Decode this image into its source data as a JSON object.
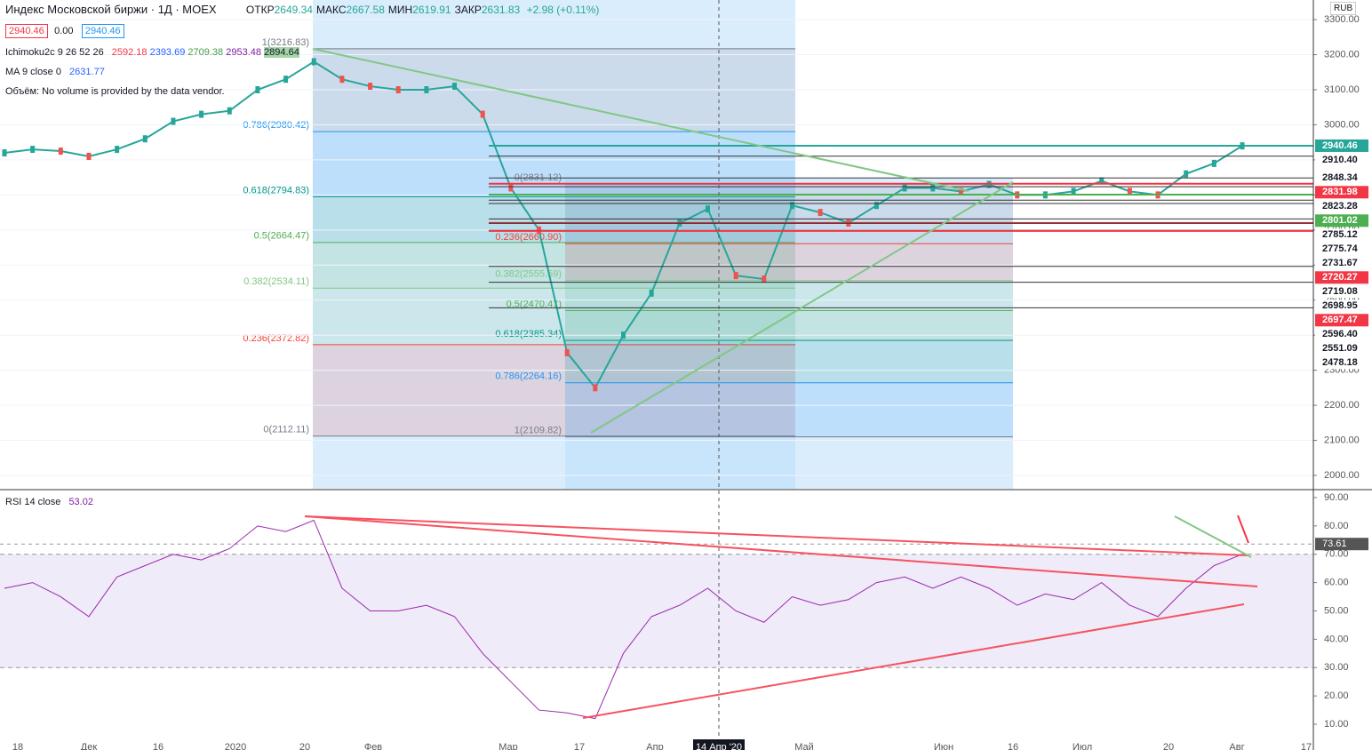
{
  "header": {
    "title": "Индекс Московской биржи · 1Д · MOEX",
    "ohlc": [
      {
        "label": "ОТКР",
        "value": "2649.34"
      },
      {
        "label": "МАКС",
        "value": "2667.58"
      },
      {
        "label": "МИН",
        "value": "2619.91"
      },
      {
        "label": "ЗАКР",
        "value": "2631.83"
      }
    ],
    "change": "+2.98 (+0.11%)",
    "price_boxes": [
      "2940.46",
      "0.00",
      "2940.46"
    ]
  },
  "indicators": {
    "ichimoku": {
      "label": "Ichimoku2c 9 26 52 26",
      "values": [
        "2592.18",
        "2393.69",
        "2709.38",
        "2953.48",
        "2894.64"
      ]
    },
    "ma": {
      "label": "MA 9 close 0",
      "value": "2631.77"
    },
    "volume": "Объём: No volume is provided by the data vendor."
  },
  "price_axis": {
    "currency": "RUB",
    "ylim": [
      1962,
      3356
    ],
    "ticks": [
      {
        "value": 3300,
        "label": "3300.00"
      },
      {
        "value": 3200,
        "label": "3200.00"
      },
      {
        "value": 3100,
        "label": "3100.00"
      },
      {
        "value": 3000,
        "label": "3000.00"
      },
      {
        "value": 2900,
        "label": "2900.00"
      },
      {
        "value": 2800,
        "label": "2800.00"
      },
      {
        "value": 2700,
        "label": "2700.00"
      },
      {
        "value": 2600,
        "label": "2600.00"
      },
      {
        "value": 2500,
        "label": "2500.00"
      },
      {
        "value": 2400,
        "label": "2400.00"
      },
      {
        "value": 2300,
        "label": "2300.00"
      },
      {
        "value": 2200,
        "label": "2200.00"
      },
      {
        "value": 2100,
        "label": "2100.00"
      },
      {
        "value": 2000,
        "label": "2000.00"
      }
    ]
  },
  "price_labels": [
    {
      "value": 2940.46,
      "label": "2940.46",
      "color": "#26a69a"
    },
    {
      "value": 2910.4,
      "label": "2910.40",
      "color": "#ffffff"
    },
    {
      "value": 2848.34,
      "label": "2848.34",
      "color": "#ffffff"
    },
    {
      "value": 2831.98,
      "label": "2831.98",
      "color": "#f23645"
    },
    {
      "value": 2823.28,
      "label": "2823.28",
      "color": "#ffffff"
    },
    {
      "value": 2801.02,
      "label": "2801.02",
      "color": "#4caf50"
    },
    {
      "value": 2785.12,
      "label": "2785.12",
      "color": "#ffffff"
    },
    {
      "value": 2775.74,
      "label": "2775.74",
      "color": "#ffffff"
    },
    {
      "value": 2731.67,
      "label": "2731.67",
      "color": "#ffffff"
    },
    {
      "value": 2720.27,
      "label": "2720.27",
      "color": "#f23645"
    },
    {
      "value": 2719.08,
      "label": "2719.08",
      "color": "#ffffff"
    },
    {
      "value": 2698.95,
      "label": "2698.95",
      "color": "#ffffff"
    },
    {
      "value": 2697.47,
      "label": "2697.47",
      "color": "#f23645"
    },
    {
      "value": 2596.4,
      "label": "2596.40",
      "color": "#ffffff"
    },
    {
      "value": 2551.09,
      "label": "2551.09",
      "color": "#ffffff"
    },
    {
      "value": 2478.18,
      "label": "2478.18",
      "color": "#ffffff"
    }
  ],
  "fib_a": [
    {
      "value": 3216.83,
      "label": "1(3216.83)",
      "color": "#787b86"
    },
    {
      "value": 2980.42,
      "label": "0.786(2980.42)",
      "color": "#2196f3"
    },
    {
      "value": 2794.83,
      "label": "0.618(2794.83)",
      "color": "#009688"
    },
    {
      "value": 2664.47,
      "label": "0.5(2664.47)",
      "color": "#4caf50"
    },
    {
      "value": 2534.11,
      "label": "0.382(2534.11)",
      "color": "#81c784"
    },
    {
      "value": 2372.82,
      "label": "0.236(2372.82)",
      "color": "#f44336"
    },
    {
      "value": 2112.11,
      "label": "0(2112.11)",
      "color": "#787b86"
    }
  ],
  "fib_b": [
    {
      "value": 2831.12,
      "label": "0(2831.12)",
      "color": "#787b86"
    },
    {
      "value": 2660.9,
      "label": "0.236(2660.90)",
      "color": "#f44336"
    },
    {
      "value": 2555.59,
      "label": "0.382(2555.59)",
      "color": "#81c784"
    },
    {
      "value": 2470.47,
      "label": "0.5(2470.47)",
      "color": "#4caf50"
    },
    {
      "value": 2385.34,
      "label": "0.618(2385.34)",
      "color": "#009688"
    },
    {
      "value": 2264.16,
      "label": "0.786(2264.16)",
      "color": "#2196f3"
    },
    {
      "value": 2109.82,
      "label": "1(2109.82)",
      "color": "#787b86"
    }
  ],
  "close": [
    2920,
    2930,
    2925,
    2910,
    2930,
    2960,
    3010,
    3030,
    3040,
    3100,
    3130,
    3180,
    3130,
    3110,
    3100,
    3100,
    3110,
    3030,
    2820,
    2700,
    2350,
    2250,
    2400,
    2520,
    2720,
    2760,
    2570,
    2560,
    2770,
    2750,
    2720,
    2770,
    2820,
    2820,
    2810,
    2830,
    2800,
    2800,
    2810,
    2840,
    2810,
    2800,
    2860,
    2890,
    2940
  ],
  "rsi": {
    "label": "RSI 14 close",
    "value": "53.02",
    "ylim": [
      5.3,
      92.5
    ],
    "ticks": [
      {
        "value": 90,
        "label": "90.00"
      },
      {
        "value": 80,
        "label": "80.00"
      },
      {
        "value": 70,
        "label": "70.00"
      },
      {
        "value": 60,
        "label": "60.00"
      },
      {
        "value": 50,
        "label": "50.00"
      },
      {
        "value": 40,
        "label": "40.00"
      },
      {
        "value": 30,
        "label": "30.00"
      },
      {
        "value": 20,
        "label": "20.00"
      },
      {
        "value": 10,
        "label": "10.00"
      }
    ],
    "band": [
      30,
      70
    ],
    "marker": {
      "value": 73.61,
      "label": "73.61"
    },
    "values": [
      58,
      60,
      55,
      48,
      62,
      66,
      70,
      68,
      72,
      80,
      78,
      82,
      58,
      50,
      50,
      52,
      48,
      35,
      25,
      15,
      14,
      12,
      35,
      48,
      52,
      58,
      50,
      46,
      55,
      52,
      54,
      60,
      62,
      58,
      62,
      58,
      52,
      56,
      54,
      60,
      52,
      48,
      58,
      66,
      70
    ]
  },
  "x_labels": [
    "18",
    "Дек",
    "16",
    "2020",
    "20",
    "Фев",
    "Мар",
    "17",
    "Апр",
    "14 Апр '20",
    "Май",
    "Июн",
    "16",
    "Июл",
    "20",
    "Авг",
    "17"
  ]
}
